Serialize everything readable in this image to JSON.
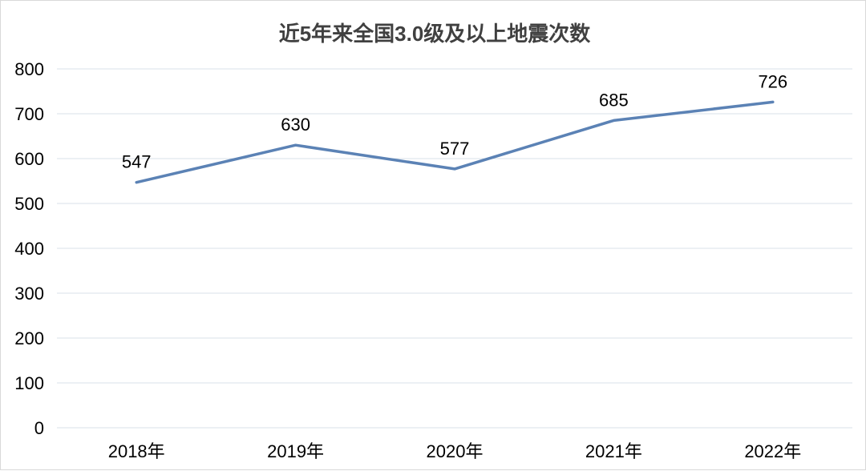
{
  "chart_data": {
    "type": "line",
    "title": "近5年来全国3.0级及以上地震次数",
    "categories": [
      "2018年",
      "2019年",
      "2020年",
      "2021年",
      "2022年"
    ],
    "series": [
      {
        "values": [
          547,
          630,
          577,
          685,
          726
        ],
        "color": "#5b82b5"
      }
    ],
    "data_labels": [
      "547",
      "630",
      "577",
      "685",
      "726"
    ],
    "ylim": [
      0,
      800
    ],
    "yticks": [
      0,
      100,
      200,
      300,
      400,
      500,
      600,
      700,
      800
    ],
    "grid": true,
    "legend": "none"
  }
}
